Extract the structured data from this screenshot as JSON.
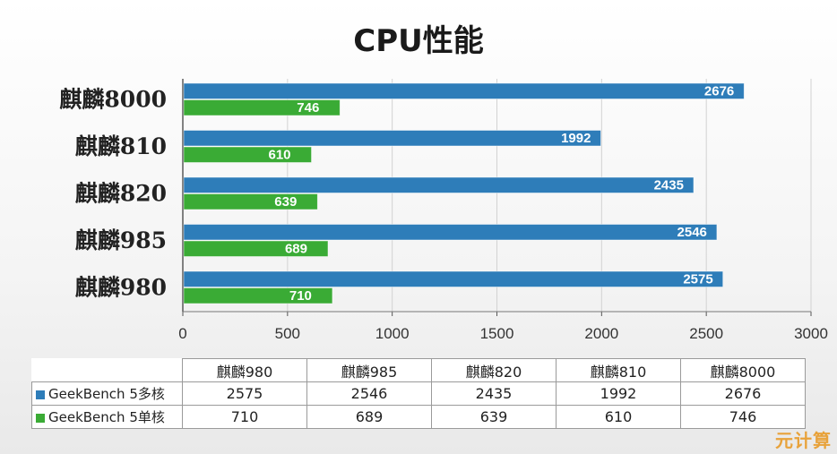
{
  "chart_data": {
    "type": "bar",
    "orientation": "horizontal",
    "title": "CPU性能",
    "categories": [
      "麒麟8000",
      "麒麟810",
      "麒麟820",
      "麒麟985",
      "麒麟980"
    ],
    "series": [
      {
        "name": "GeekBench 5多核",
        "color": "#2e7db9",
        "values": [
          2676,
          1992,
          2435,
          2546,
          2575
        ]
      },
      {
        "name": "GeekBench 5单核",
        "color": "#3aab35",
        "values": [
          746,
          610,
          639,
          689,
          710
        ]
      }
    ],
    "xlim": [
      0,
      3000
    ],
    "xticks": [
      0,
      500,
      1000,
      1500,
      2000,
      2500,
      3000
    ],
    "gridlines": true,
    "data_table": {
      "columns": [
        "麒麟980",
        "麒麟985",
        "麒麟820",
        "麒麟810",
        "麒麟8000"
      ],
      "rows": [
        {
          "label": "GeekBench 5多核",
          "color": "#2e7db9",
          "values": [
            "2575",
            "2546",
            "2435",
            "1992",
            "2676"
          ]
        },
        {
          "label": "GeekBench 5单核",
          "color": "#3aab35",
          "values": [
            "710",
            "689",
            "639",
            "610",
            "746"
          ]
        }
      ]
    }
  },
  "watermark": "元计算"
}
